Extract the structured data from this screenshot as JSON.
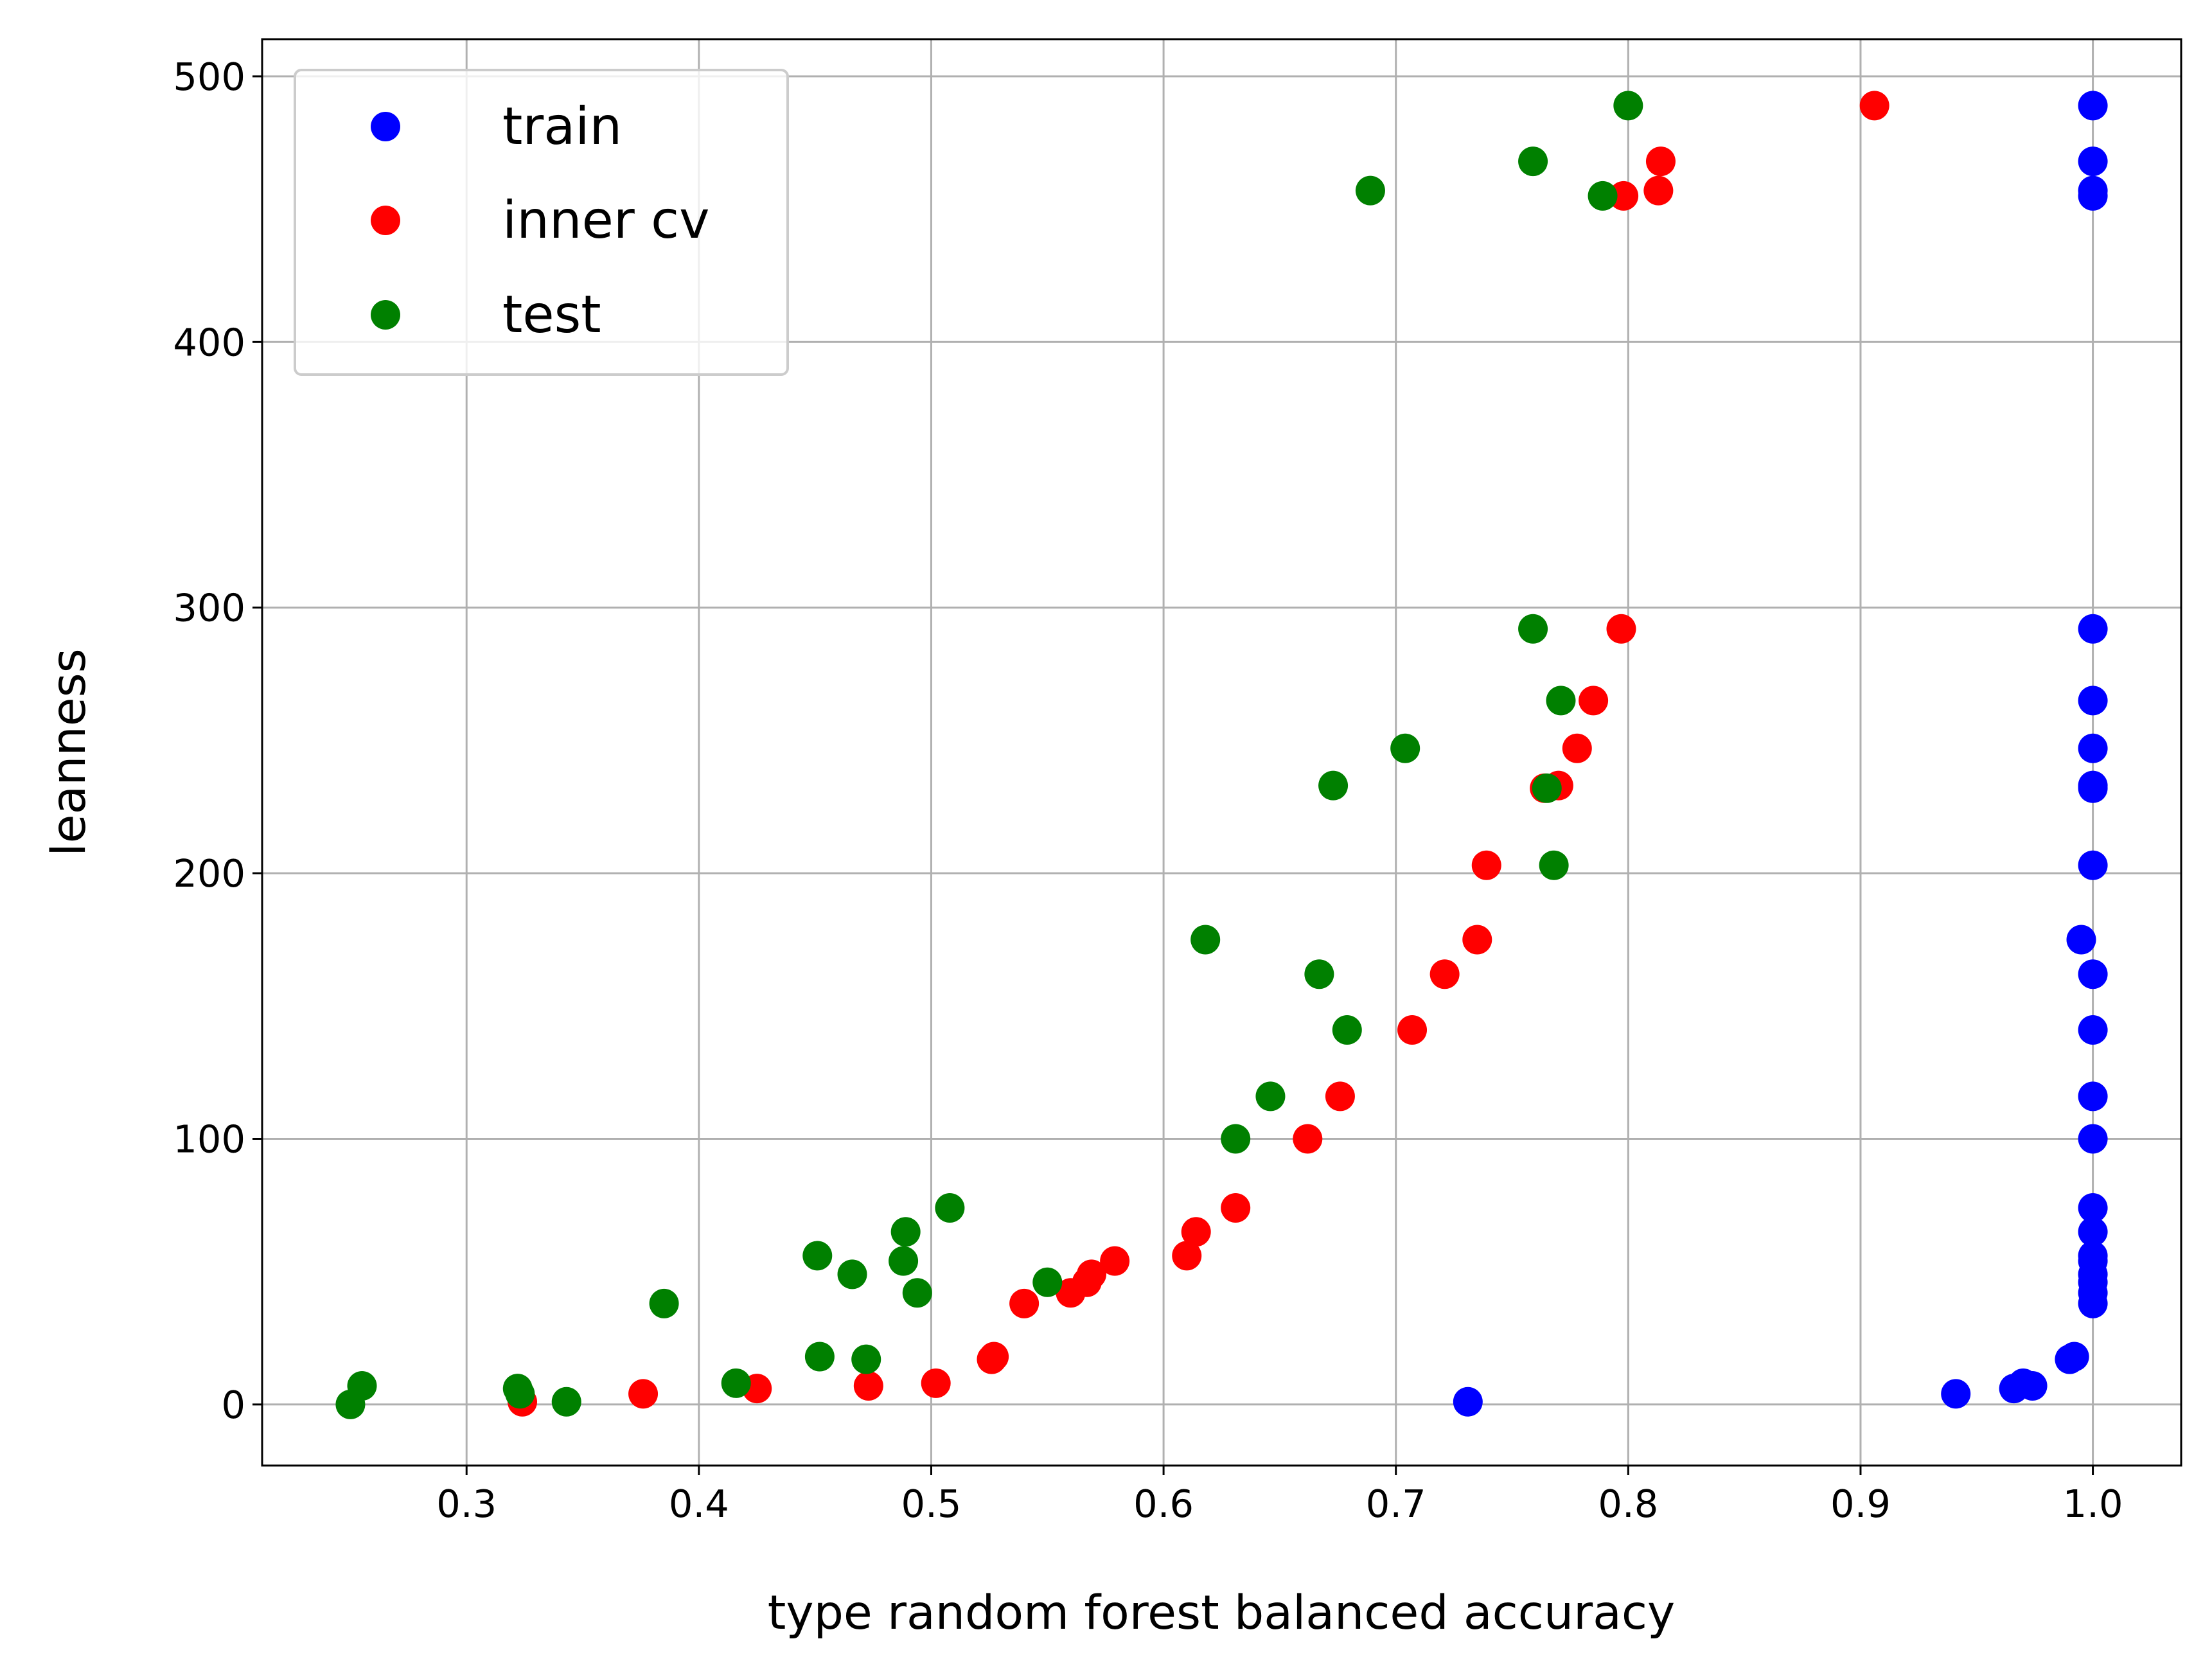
{
  "chart_data": {
    "type": "scatter",
    "title": "",
    "xlabel": "type random forest balanced accuracy",
    "ylabel": "leanness",
    "xlim": [
      0.212,
      1.038
    ],
    "ylim": [
      -23,
      514
    ],
    "xticks": [
      0.3,
      0.4,
      0.5,
      0.6,
      0.7,
      0.8,
      0.9,
      1.0
    ],
    "xtick_labels": [
      "0.3",
      "0.4",
      "0.5",
      "0.6",
      "0.7",
      "0.8",
      "0.9",
      "1.0"
    ],
    "yticks": [
      0,
      100,
      200,
      300,
      400,
      500
    ],
    "ytick_labels": [
      "0",
      "100",
      "200",
      "300",
      "400",
      "500"
    ],
    "grid": true,
    "legend_position": "top-left",
    "series": [
      {
        "name": "train",
        "color": "#0000ff",
        "points": [
          [
            1.0,
            489
          ],
          [
            1.0,
            468
          ],
          [
            1.0,
            457
          ],
          [
            1.0,
            455
          ],
          [
            1.0,
            292
          ],
          [
            1.0,
            265
          ],
          [
            1.0,
            247
          ],
          [
            1.0,
            233
          ],
          [
            1.0,
            232
          ],
          [
            1.0,
            203
          ],
          [
            0.995,
            175
          ],
          [
            1.0,
            162
          ],
          [
            1.0,
            141
          ],
          [
            1.0,
            116
          ],
          [
            1.0,
            100
          ],
          [
            1.0,
            74
          ],
          [
            1.0,
            65
          ],
          [
            1.0,
            56
          ],
          [
            1.0,
            54
          ],
          [
            1.0,
            49
          ],
          [
            1.0,
            46
          ],
          [
            1.0,
            42
          ],
          [
            1.0,
            38
          ],
          [
            0.992,
            18
          ],
          [
            0.99,
            17
          ],
          [
            0.974,
            7
          ],
          [
            0.97,
            8
          ],
          [
            0.966,
            6
          ],
          [
            0.941,
            4
          ],
          [
            0.731,
            1
          ]
        ]
      },
      {
        "name": "inner cv",
        "color": "#ff0000",
        "points": [
          [
            0.906,
            489
          ],
          [
            0.814,
            468
          ],
          [
            0.798,
            455
          ],
          [
            0.813,
            457
          ],
          [
            0.797,
            292
          ],
          [
            0.785,
            265
          ],
          [
            0.778,
            247
          ],
          [
            0.77,
            233
          ],
          [
            0.764,
            232
          ],
          [
            0.739,
            203
          ],
          [
            0.735,
            175
          ],
          [
            0.721,
            162
          ],
          [
            0.707,
            141
          ],
          [
            0.676,
            116
          ],
          [
            0.662,
            100
          ],
          [
            0.631,
            74
          ],
          [
            0.614,
            65
          ],
          [
            0.61,
            56
          ],
          [
            0.579,
            54
          ],
          [
            0.569,
            49
          ],
          [
            0.567,
            46
          ],
          [
            0.56,
            42
          ],
          [
            0.54,
            38
          ],
          [
            0.527,
            18
          ],
          [
            0.526,
            17
          ],
          [
            0.502,
            8
          ],
          [
            0.473,
            7
          ],
          [
            0.425,
            6
          ],
          [
            0.376,
            4
          ],
          [
            0.324,
            1
          ]
        ]
      },
      {
        "name": "test",
        "color": "#008000",
        "points": [
          [
            0.8,
            489
          ],
          [
            0.759,
            468
          ],
          [
            0.689,
            457
          ],
          [
            0.789,
            455
          ],
          [
            0.759,
            292
          ],
          [
            0.771,
            265
          ],
          [
            0.704,
            247
          ],
          [
            0.673,
            233
          ],
          [
            0.765,
            232
          ],
          [
            0.768,
            203
          ],
          [
            0.618,
            175
          ],
          [
            0.667,
            162
          ],
          [
            0.679,
            141
          ],
          [
            0.646,
            116
          ],
          [
            0.631,
            100
          ],
          [
            0.508,
            74
          ],
          [
            0.489,
            65
          ],
          [
            0.451,
            56
          ],
          [
            0.488,
            54
          ],
          [
            0.466,
            49
          ],
          [
            0.55,
            46
          ],
          [
            0.494,
            42
          ],
          [
            0.385,
            38
          ],
          [
            0.452,
            18
          ],
          [
            0.472,
            17
          ],
          [
            0.416,
            8
          ],
          [
            0.255,
            7
          ],
          [
            0.322,
            6
          ],
          [
            0.323,
            4
          ],
          [
            0.343,
            1
          ],
          [
            0.25,
            0
          ]
        ]
      }
    ]
  }
}
